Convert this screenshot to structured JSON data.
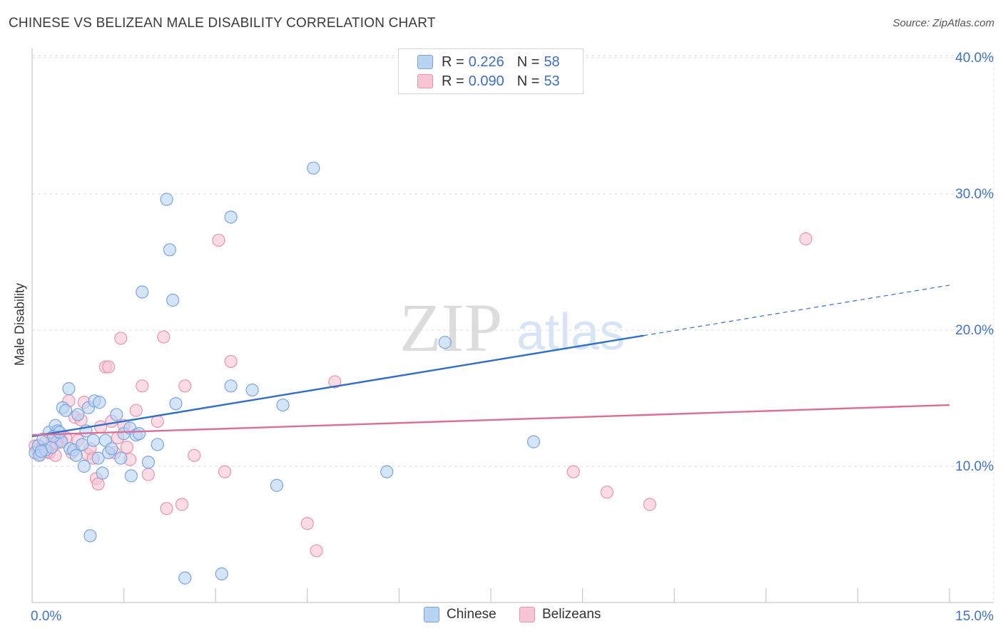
{
  "header": {
    "title": "CHINESE VS BELIZEAN MALE DISABILITY CORRELATION CHART",
    "source": "Source: ZipAtlas.com"
  },
  "legend": {
    "rows": [
      {
        "r_label": "R =",
        "r_value": "0.226",
        "n_label": "N =",
        "n_value": "58"
      },
      {
        "r_label": "R =",
        "r_value": "0.090",
        "n_label": "N =",
        "n_value": "53"
      }
    ],
    "bottom": [
      "Chinese",
      "Belizeans"
    ]
  },
  "watermark": {
    "zip": "ZIP",
    "atlas": "atlas"
  },
  "colors": {
    "blue_fill": "#b9d3f3",
    "blue_stroke": "#7ba4de",
    "blue_line": "#2e6fcb",
    "pink_fill": "#f8c5d4",
    "pink_stroke": "#e893ae",
    "pink_line": "#e06b95",
    "tick_label": "#3f73c6",
    "grid": "#dddddd"
  },
  "chart_data": {
    "type": "scatter",
    "title": "CHINESE VS BELIZEAN MALE DISABILITY CORRELATION CHART",
    "xlabel": "",
    "ylabel": "Male Disability",
    "xlim": [
      0,
      15
    ],
    "ylim": [
      0,
      40
    ],
    "x_tick_labels": [
      "0.0%",
      "15.0%"
    ],
    "y_ticks": [
      10,
      20,
      30,
      40
    ],
    "y_tick_labels": [
      "10.0%",
      "20.0%",
      "30.0%",
      "40.0%"
    ],
    "series": [
      {
        "name": "Chinese",
        "r": 0.226,
        "n": 58,
        "trend": {
          "x0": 0.0,
          "y0": 12.2,
          "x1": 10.0,
          "y1": 19.6,
          "dash_to_x": 15.0,
          "dash_to_y": 23.3
        },
        "points": [
          [
            0.05,
            11.0
          ],
          [
            0.1,
            11.5
          ],
          [
            0.12,
            10.8
          ],
          [
            0.18,
            12.0
          ],
          [
            0.22,
            11.2
          ],
          [
            0.28,
            12.5
          ],
          [
            0.32,
            11.4
          ],
          [
            0.38,
            13.0
          ],
          [
            0.42,
            12.6
          ],
          [
            0.48,
            11.8
          ],
          [
            0.5,
            14.3
          ],
          [
            0.55,
            14.1
          ],
          [
            0.6,
            15.7
          ],
          [
            0.62,
            11.3
          ],
          [
            0.68,
            11.2
          ],
          [
            0.72,
            10.8
          ],
          [
            0.75,
            13.8
          ],
          [
            0.82,
            11.6
          ],
          [
            0.85,
            10.0
          ],
          [
            0.88,
            12.6
          ],
          [
            0.92,
            14.3
          ],
          [
            0.95,
            4.9
          ],
          [
            1.0,
            11.9
          ],
          [
            1.02,
            14.8
          ],
          [
            1.08,
            10.6
          ],
          [
            1.1,
            14.7
          ],
          [
            1.15,
            9.5
          ],
          [
            1.2,
            11.9
          ],
          [
            1.25,
            11.0
          ],
          [
            1.3,
            11.3
          ],
          [
            1.38,
            13.8
          ],
          [
            1.45,
            10.6
          ],
          [
            1.5,
            12.4
          ],
          [
            1.6,
            12.8
          ],
          [
            1.62,
            9.3
          ],
          [
            1.7,
            12.3
          ],
          [
            1.75,
            12.4
          ],
          [
            1.8,
            22.8
          ],
          [
            1.9,
            10.3
          ],
          [
            2.05,
            11.6
          ],
          [
            2.2,
            29.6
          ],
          [
            2.25,
            25.9
          ],
          [
            2.3,
            22.2
          ],
          [
            2.35,
            14.6
          ],
          [
            2.5,
            1.8
          ],
          [
            3.1,
            2.1
          ],
          [
            3.25,
            28.3
          ],
          [
            3.25,
            15.9
          ],
          [
            3.6,
            15.6
          ],
          [
            4.0,
            8.6
          ],
          [
            4.1,
            14.5
          ],
          [
            4.6,
            31.9
          ],
          [
            5.8,
            9.6
          ],
          [
            6.75,
            19.1
          ],
          [
            8.2,
            11.8
          ],
          [
            0.35,
            12.2
          ],
          [
            0.15,
            11.1
          ],
          [
            0.45,
            12.5
          ]
        ]
      },
      {
        "name": "Belizeans",
        "r": 0.09,
        "n": 53,
        "trend": {
          "x0": 0.0,
          "y0": 12.3,
          "x1": 15.0,
          "y1": 14.5
        },
        "points": [
          [
            0.05,
            11.5
          ],
          [
            0.08,
            11.2
          ],
          [
            0.12,
            10.9
          ],
          [
            0.18,
            11.3
          ],
          [
            0.22,
            11.8
          ],
          [
            0.28,
            11.0
          ],
          [
            0.32,
            11.6
          ],
          [
            0.38,
            10.8
          ],
          [
            0.42,
            12.0
          ],
          [
            0.48,
            11.9
          ],
          [
            0.55,
            12.1
          ],
          [
            0.6,
            14.8
          ],
          [
            0.65,
            11.0
          ],
          [
            0.7,
            13.6
          ],
          [
            0.75,
            11.9
          ],
          [
            0.8,
            13.4
          ],
          [
            0.85,
            14.7
          ],
          [
            0.9,
            10.9
          ],
          [
            0.95,
            11.3
          ],
          [
            1.0,
            10.6
          ],
          [
            1.05,
            9.1
          ],
          [
            1.08,
            8.7
          ],
          [
            1.12,
            12.9
          ],
          [
            1.2,
            17.3
          ],
          [
            1.25,
            17.3
          ],
          [
            1.3,
            13.3
          ],
          [
            1.35,
            11.0
          ],
          [
            1.4,
            12.1
          ],
          [
            1.45,
            19.4
          ],
          [
            1.5,
            13.0
          ],
          [
            1.55,
            11.4
          ],
          [
            1.6,
            10.5
          ],
          [
            1.7,
            14.1
          ],
          [
            1.8,
            15.9
          ],
          [
            1.9,
            9.4
          ],
          [
            2.05,
            13.3
          ],
          [
            2.15,
            19.5
          ],
          [
            2.2,
            6.9
          ],
          [
            2.45,
            7.2
          ],
          [
            2.5,
            15.9
          ],
          [
            2.65,
            10.8
          ],
          [
            3.05,
            26.6
          ],
          [
            3.15,
            9.6
          ],
          [
            3.25,
            17.7
          ],
          [
            4.5,
            5.8
          ],
          [
            4.65,
            3.8
          ],
          [
            4.95,
            16.2
          ],
          [
            8.85,
            9.6
          ],
          [
            9.4,
            8.1
          ],
          [
            10.1,
            7.2
          ],
          [
            12.65,
            26.7
          ],
          [
            0.25,
            11.1
          ],
          [
            0.4,
            11.7
          ]
        ]
      }
    ]
  }
}
